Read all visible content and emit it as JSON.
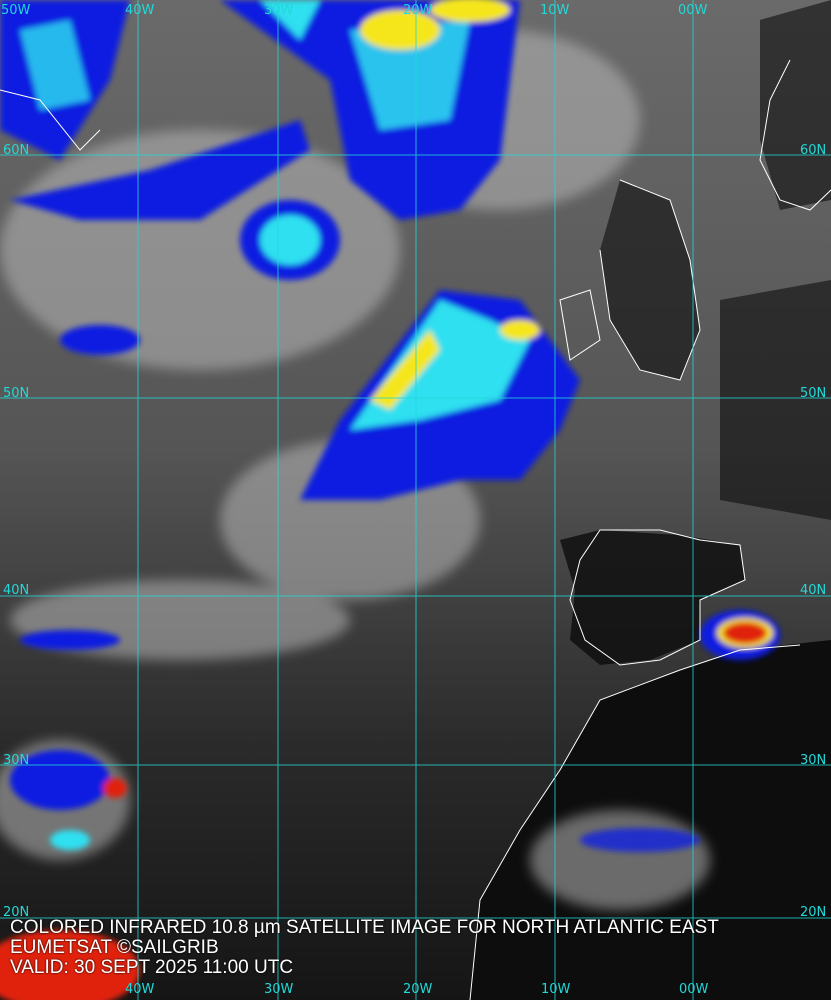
{
  "caption": {
    "title": "COLORED INFRARED 10.8 µm SATELLITE IMAGE FOR NORTH ATLANTIC EAST",
    "credit": "EUMETSAT ©SAILGRIB",
    "valid": "VALID:  30 SEPT 2025 11:00 UTC"
  },
  "grid": {
    "color": "#22d8d8",
    "top_labels": [
      "50W",
      "40W",
      "30W",
      "20W",
      "10W",
      "00W"
    ],
    "bottom_labels": [
      "40W",
      "30W",
      "20W",
      "10W",
      "00W"
    ],
    "left_labels": [
      "60N",
      "50N",
      "40N",
      "30N",
      "20N"
    ],
    "right_labels": [
      "60N",
      "50N",
      "40N",
      "30N",
      "20N"
    ]
  },
  "palette": {
    "clear_sky": "#3a3a3a",
    "land_dark": "#0d0d0d",
    "cloud_low": "#b8b8b8",
    "cloud_blue": "#0a1ee0",
    "cloud_cyan": "#2fe0f0",
    "cloud_yellow": "#f5e61a",
    "cloud_red": "#e02010",
    "coastline": "#ffffff"
  }
}
